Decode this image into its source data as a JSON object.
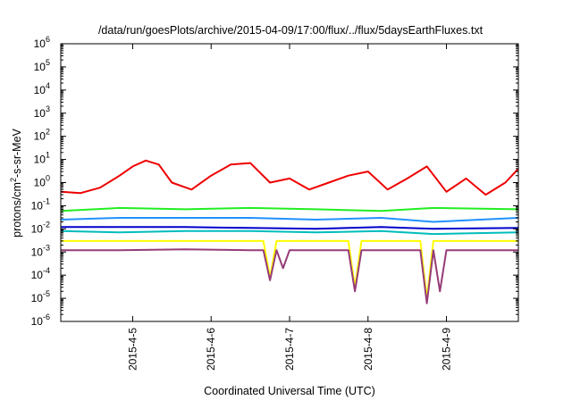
{
  "chart_data": {
    "type": "line",
    "title": "/data/run/goesPlots/archive/2015-04-09/17:00/flux/../flux/5daysEarthFluxes.txt",
    "xlabel": "Coordinated Universal Time (UTC)",
    "ylabel": {
      "base": "protons/cm",
      "sup": "2",
      "rest": "-s-sr-MeV"
    },
    "y_scale": "log",
    "ylim": [
      1e-06,
      1000000.0
    ],
    "y_ticks": [
      {
        "value": 1e-06,
        "base": "10",
        "exp": "-6"
      },
      {
        "value": 1e-05,
        "base": "10",
        "exp": "-5"
      },
      {
        "value": 0.0001,
        "base": "10",
        "exp": "-4"
      },
      {
        "value": 0.001,
        "base": "10",
        "exp": "-3"
      },
      {
        "value": 0.01,
        "base": "10",
        "exp": "-2"
      },
      {
        "value": 0.1,
        "base": "10",
        "exp": "-1"
      },
      {
        "value": 1,
        "base": "10",
        "exp": "0"
      },
      {
        "value": 10.0,
        "base": "10",
        "exp": "1"
      },
      {
        "value": 100.0,
        "base": "10",
        "exp": "2"
      },
      {
        "value": 1000.0,
        "base": "10",
        "exp": "3"
      },
      {
        "value": 10000.0,
        "base": "10",
        "exp": "4"
      },
      {
        "value": 100000.0,
        "base": "10",
        "exp": "5"
      },
      {
        "value": 1000000.0,
        "base": "10",
        "exp": "6"
      }
    ],
    "xlim": [
      "2015-04-04 02:00",
      "2015-04-09 22:00"
    ],
    "x_ticks": [
      "2015-4-5",
      "2015-4-6",
      "2015-4-7",
      "2015-4-8",
      "2015-4-9"
    ],
    "grid": false,
    "legend": "none",
    "series": [
      {
        "color": "#ee0000",
        "x": [
          "2015-04-04 02:00",
          "2015-04-04 08:00",
          "2015-04-04 14:00",
          "2015-04-04 20:00",
          "2015-04-05 00:00",
          "2015-04-05 04:00",
          "2015-04-05 08:00",
          "2015-04-05 12:00",
          "2015-04-05 18:00",
          "2015-04-06 00:00",
          "2015-04-06 06:00",
          "2015-04-06 12:00",
          "2015-04-06 18:00",
          "2015-04-07 00:00",
          "2015-04-07 06:00",
          "2015-04-07 12:00",
          "2015-04-07 18:00",
          "2015-04-08 00:00",
          "2015-04-08 06:00",
          "2015-04-08 12:00",
          "2015-04-08 18:00",
          "2015-04-09 00:00",
          "2015-04-09 06:00",
          "2015-04-09 12:00",
          "2015-04-09 18:00",
          "2015-04-09 22:00"
        ],
        "values": [
          0.4,
          0.35,
          0.6,
          2.0,
          5.0,
          9.0,
          6.0,
          1.0,
          0.5,
          2.0,
          6.0,
          7.0,
          1.0,
          1.5,
          0.5,
          1.0,
          2.0,
          3.0,
          0.5,
          1.5,
          5.0,
          0.4,
          1.5,
          0.3,
          1.0,
          4.0
        ]
      },
      {
        "color": "#22ee22",
        "x": [
          "2015-04-04 02:00",
          "2015-04-04 20:00",
          "2015-04-05 16:00",
          "2015-04-06 12:00",
          "2015-04-07 08:00",
          "2015-04-08 04:00",
          "2015-04-08 20:00",
          "2015-04-09 22:00"
        ],
        "values": [
          0.06,
          0.08,
          0.07,
          0.08,
          0.07,
          0.06,
          0.08,
          0.07
        ]
      },
      {
        "color": "#2090ff",
        "x": [
          "2015-04-04 02:00",
          "2015-04-04 20:00",
          "2015-04-05 16:00",
          "2015-04-06 12:00",
          "2015-04-07 08:00",
          "2015-04-08 04:00",
          "2015-04-08 20:00",
          "2015-04-09 22:00"
        ],
        "values": [
          0.025,
          0.03,
          0.03,
          0.03,
          0.025,
          0.03,
          0.02,
          0.03
        ]
      },
      {
        "color": "#0000cc",
        "x": [
          "2015-04-04 02:00",
          "2015-04-04 20:00",
          "2015-04-05 16:00",
          "2015-04-06 12:00",
          "2015-04-07 08:00",
          "2015-04-08 04:00",
          "2015-04-08 20:00",
          "2015-04-09 22:00"
        ],
        "values": [
          0.012,
          0.012,
          0.012,
          0.011,
          0.01,
          0.012,
          0.01,
          0.011
        ]
      },
      {
        "color": "#00bcbc",
        "x": [
          "2015-04-04 02:00",
          "2015-04-04 20:00",
          "2015-04-05 16:00",
          "2015-04-06 12:00",
          "2015-04-07 08:00",
          "2015-04-08 04:00",
          "2015-04-08 20:00",
          "2015-04-09 22:00"
        ],
        "values": [
          0.008,
          0.007,
          0.008,
          0.008,
          0.007,
          0.008,
          0.006,
          0.007
        ]
      },
      {
        "color": "#ffff00",
        "x": [
          "2015-04-04 02:00",
          "2015-04-04 20:00",
          "2015-04-05 16:00",
          "2015-04-06 12:00",
          "2015-04-06 16:00",
          "2015-04-06 18:00",
          "2015-04-06 20:00",
          "2015-04-07 08:00",
          "2015-04-07 18:00",
          "2015-04-07 20:00",
          "2015-04-07 22:00",
          "2015-04-08 16:00",
          "2015-04-08 18:00",
          "2015-04-08 20:00",
          "2015-04-08 22:00",
          "2015-04-09 22:00"
        ],
        "values": [
          0.003,
          0.003,
          0.003,
          0.003,
          0.003,
          8e-05,
          0.003,
          0.003,
          0.003,
          3e-05,
          0.003,
          0.003,
          1e-05,
          0.003,
          0.003,
          0.003
        ]
      },
      {
        "color": "#963c78",
        "x": [
          "2015-04-04 02:00",
          "2015-04-04 20:00",
          "2015-04-05 16:00",
          "2015-04-06 12:00",
          "2015-04-06 16:00",
          "2015-04-06 18:00",
          "2015-04-06 20:00",
          "2015-04-06 22:00",
          "2015-04-07 00:00",
          "2015-04-07 08:00",
          "2015-04-07 18:00",
          "2015-04-07 20:00",
          "2015-04-07 22:00",
          "2015-04-08 16:00",
          "2015-04-08 18:00",
          "2015-04-08 20:00",
          "2015-04-08 22:00",
          "2015-04-09 00:00",
          "2015-04-09 22:00"
        ],
        "values": [
          0.0012,
          0.0012,
          0.0013,
          0.0012,
          0.0012,
          6e-05,
          0.0012,
          0.0002,
          0.0012,
          0.0012,
          0.0012,
          2e-05,
          0.0012,
          0.0012,
          6e-06,
          0.0012,
          2e-05,
          0.0012,
          0.0012
        ]
      }
    ]
  }
}
